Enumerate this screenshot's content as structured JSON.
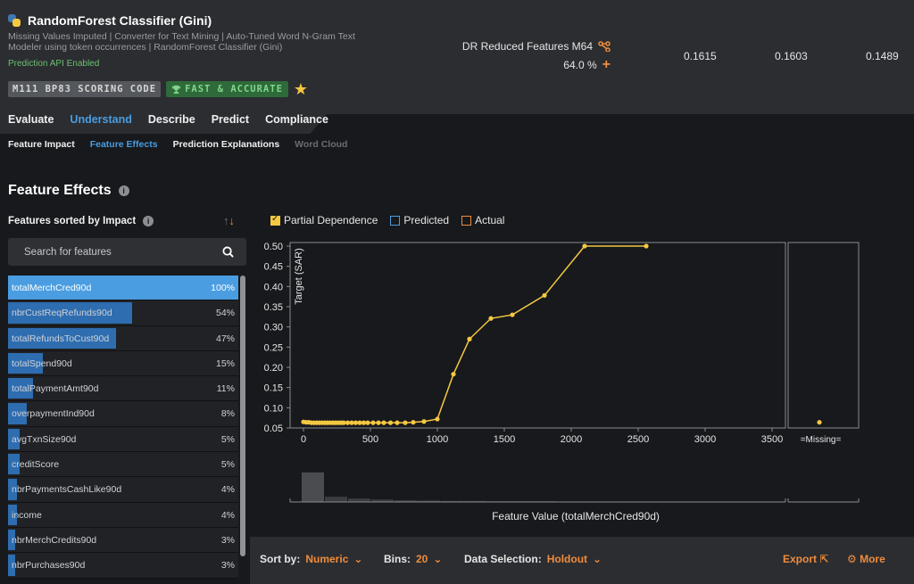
{
  "model": {
    "title": "RandomForest Classifier (Gini)",
    "description": "Missing Values Imputed | Converter for Text Mining | Auto-Tuned Word N-Gram Text Modeler using token occurrences | RandomForest Classifier (Gini)",
    "api_status": "Prediction API Enabled",
    "badge_id": "M111 BP83 SCORING CODE",
    "badge_fast": "FAST & ACCURATE",
    "feature_list": "DR Reduced Features M64",
    "sample_pct": "64.0 %",
    "metrics": [
      "0.1615",
      "0.1603",
      "0.1489"
    ]
  },
  "tabs": {
    "main": [
      "Evaluate",
      "Understand",
      "Describe",
      "Predict",
      "Compliance"
    ],
    "active_main": "Understand",
    "sub": [
      "Feature Impact",
      "Feature Effects",
      "Prediction Explanations",
      "Word Cloud"
    ],
    "active_sub": "Feature Effects"
  },
  "section_title": "Feature Effects",
  "features_panel": {
    "label": "Features sorted by Impact",
    "search_placeholder": "Search for features",
    "items": [
      {
        "name": "totalMerchCred90d",
        "pct": "100%",
        "impact": 1.0
      },
      {
        "name": "nbrCustReqRefunds90d",
        "pct": "54%",
        "impact": 0.54
      },
      {
        "name": "totalRefundsToCust90d",
        "pct": "47%",
        "impact": 0.47
      },
      {
        "name": "totalSpend90d",
        "pct": "15%",
        "impact": 0.15
      },
      {
        "name": "totalPaymentAmt90d",
        "pct": "11%",
        "impact": 0.11
      },
      {
        "name": "overpaymentInd90d",
        "pct": "8%",
        "impact": 0.08
      },
      {
        "name": "avgTxnSize90d",
        "pct": "5%",
        "impact": 0.05
      },
      {
        "name": "creditScore",
        "pct": "5%",
        "impact": 0.05
      },
      {
        "name": "nbrPaymentsCashLike90d",
        "pct": "4%",
        "impact": 0.04
      },
      {
        "name": "income",
        "pct": "4%",
        "impact": 0.04
      },
      {
        "name": "nbrMerchCredits90d",
        "pct": "3%",
        "impact": 0.03
      },
      {
        "name": "nbrPurchases90d",
        "pct": "3%",
        "impact": 0.03
      }
    ]
  },
  "legend": {
    "partial_dependence": "Partial Dependence",
    "predicted": "Predicted",
    "actual": "Actual"
  },
  "chart_data": {
    "type": "line",
    "title": "",
    "xlabel": "Feature Value (totalMerchCred90d)",
    "ylabel": "Target (SAR)",
    "xlim": [
      -100,
      3600
    ],
    "ylim": [
      0.05,
      0.5
    ],
    "x_ticks": [
      0,
      500,
      1000,
      1500,
      2000,
      2500,
      3000,
      3500
    ],
    "x_tick_labels": [
      "0",
      "500",
      "1000",
      "1500",
      "2000",
      "2500",
      "3000",
      "3500"
    ],
    "y_ticks": [
      0.05,
      0.1,
      0.15,
      0.2,
      0.25,
      0.3,
      0.35,
      0.4,
      0.45,
      0.5
    ],
    "y_tick_labels": [
      "0.05",
      "0.10",
      "0.15",
      "0.20",
      "0.25",
      "0.30",
      "0.35",
      "0.40",
      "0.45",
      "0.50"
    ],
    "missing_label": "=Missing=",
    "missing_value": 0.064,
    "series": [
      {
        "name": "Partial Dependence",
        "x": [
          0,
          20,
          40,
          60,
          80,
          100,
          120,
          140,
          160,
          180,
          200,
          220,
          240,
          260,
          280,
          300,
          330,
          360,
          390,
          420,
          450,
          480,
          520,
          560,
          600,
          650,
          700,
          760,
          820,
          900,
          1000,
          1120,
          1240,
          1400,
          1560,
          1800,
          2100,
          2560
        ],
        "y": [
          0.065,
          0.064,
          0.064,
          0.063,
          0.063,
          0.063,
          0.063,
          0.063,
          0.063,
          0.063,
          0.063,
          0.063,
          0.063,
          0.063,
          0.063,
          0.063,
          0.063,
          0.063,
          0.063,
          0.063,
          0.063,
          0.063,
          0.063,
          0.063,
          0.063,
          0.063,
          0.063,
          0.063,
          0.064,
          0.066,
          0.072,
          0.183,
          0.27,
          0.321,
          0.33,
          0.378,
          0.5,
          0.5
        ]
      }
    ],
    "histogram": [
      0.85,
      0.15,
      0.1,
      0.07,
      0.05,
      0.04,
      0.03,
      0.03,
      0.02,
      0.02,
      0.02,
      0.01,
      0.01,
      0.01,
      0.01,
      0.01,
      0.01,
      0.01,
      0.01,
      0.01
    ]
  },
  "footer": {
    "sort_label": "Sort by:",
    "sort_value": "Numeric",
    "bins_label": "Bins:",
    "bins_value": "20",
    "data_label": "Data Selection:",
    "data_value": "Holdout",
    "export_label": "Export",
    "more_label": "More"
  },
  "colors": {
    "accent_blue": "#4a9de0",
    "orange": "#f08c3c",
    "pd_line": "#f5c842",
    "bar": "#2e6db0"
  }
}
